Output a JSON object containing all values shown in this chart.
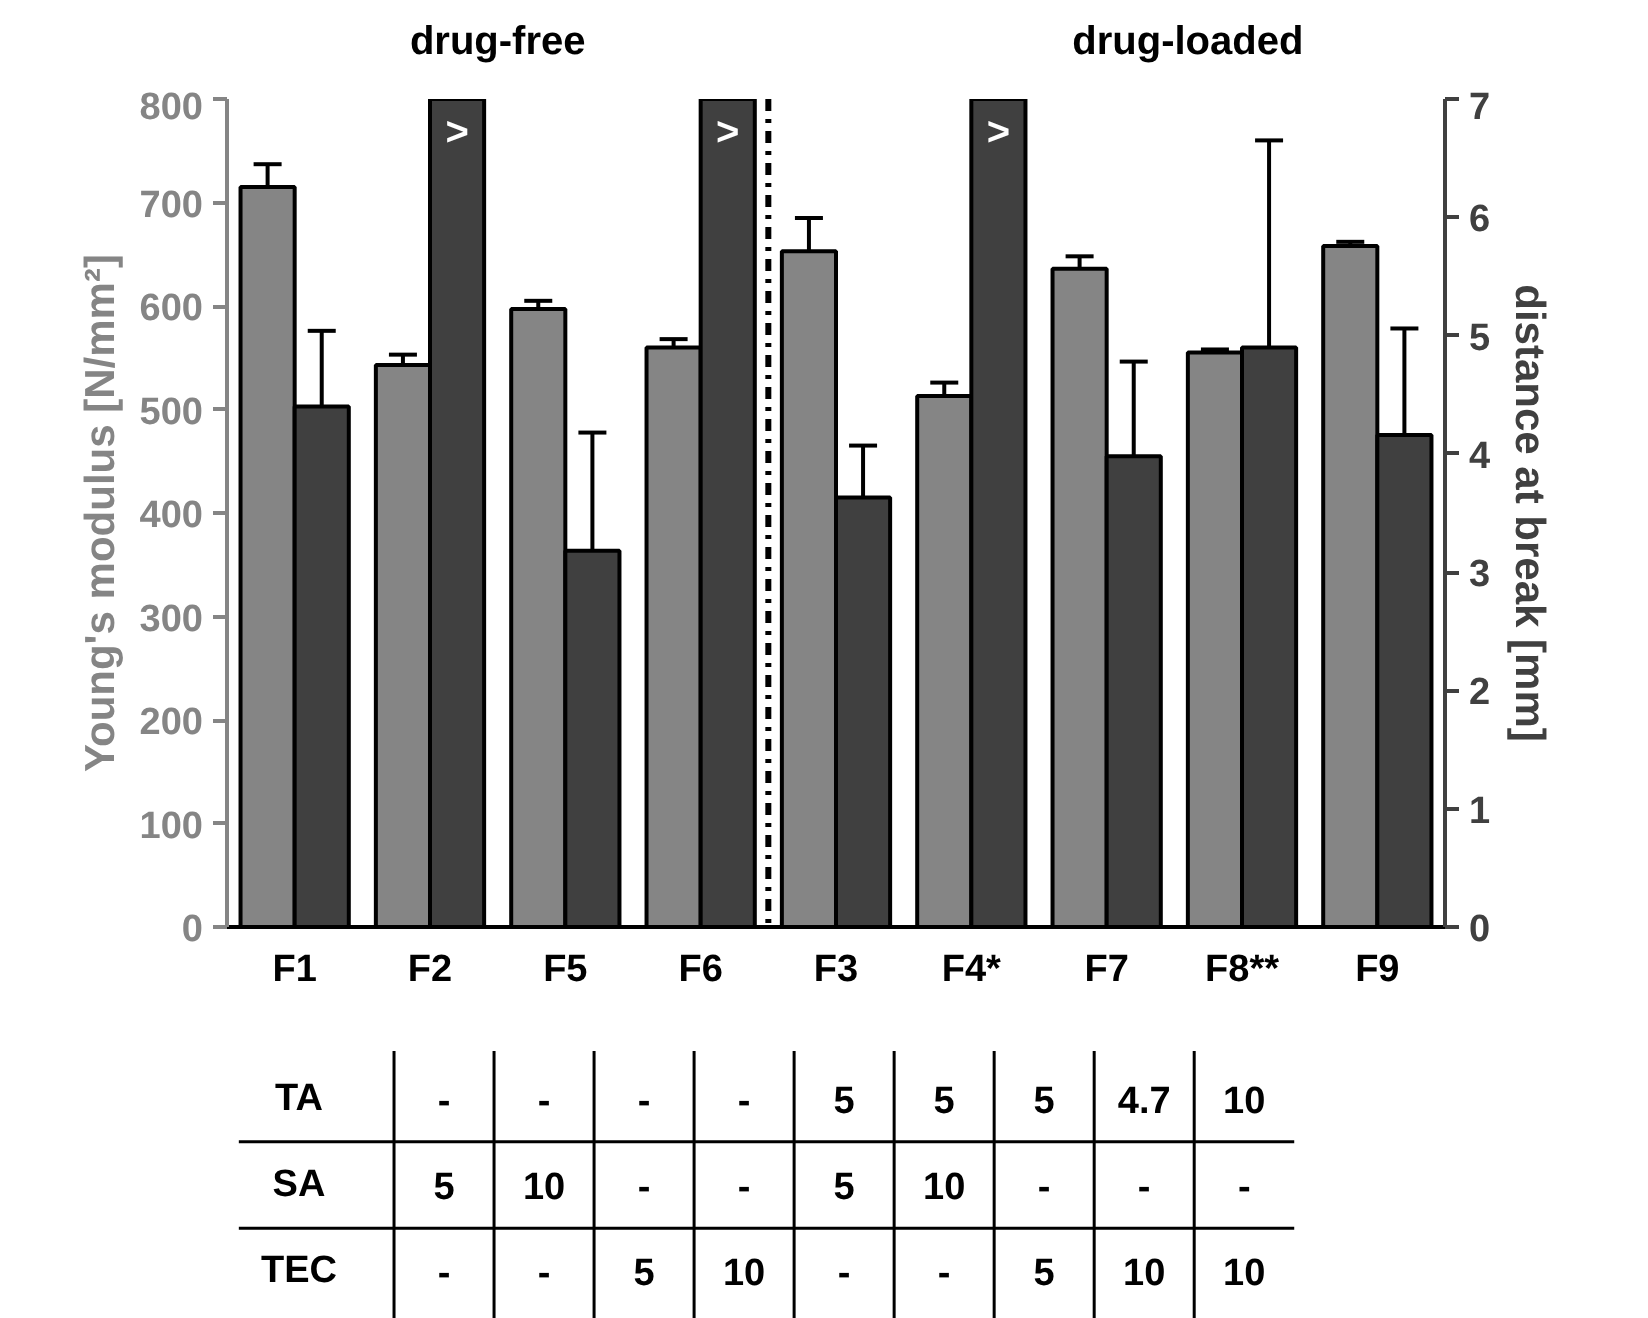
{
  "chart_data": {
    "type": "bar",
    "categories": [
      "F1",
      "F2",
      "F5",
      "F6",
      "F3",
      "F4*",
      "F7",
      "F8**",
      "F9"
    ],
    "series": [
      {
        "color": "#858585",
        "values": [
          715,
          543,
          597,
          560,
          653,
          513,
          636,
          555,
          658
        ],
        "errors": [
          22,
          10,
          8,
          8,
          32,
          13,
          12,
          3,
          4
        ]
      },
      {
        "axis": "y2",
        "color": "#404040",
        "values": [
          4.4,
          7,
          3.18,
          7,
          3.63,
          7,
          3.98,
          4.9,
          4.16
        ],
        "errors": [
          0.64,
          null,
          1.0,
          null,
          0.44,
          null,
          0.8,
          1.75,
          0.9
        ],
        "value_labels": [
          null,
          ">",
          null,
          ">",
          null,
          ">",
          null,
          null,
          null
        ]
      }
    ],
    "ylabel": "Young's modulus [N/mm²]",
    "y2label": "distance at break [mm]",
    "ylim": [
      0,
      800
    ],
    "yticks": [
      0,
      100,
      200,
      300,
      400,
      500,
      600,
      700,
      800
    ],
    "y2lim": [
      0,
      7
    ],
    "y2ticks": [
      0,
      1,
      2,
      3,
      4,
      5,
      6,
      7
    ],
    "annotations": [
      "drug-free",
      "drug-loaded",
      "TA",
      "-",
      "-",
      "-",
      "-",
      "5",
      "5",
      "5",
      "4.7",
      "10",
      "SA",
      "5",
      "10",
      "-",
      "-",
      "5",
      "10",
      "-",
      "-",
      "-",
      "TEC",
      "-",
      "-",
      "5",
      "10",
      "-",
      "-",
      "5",
      "10",
      "10"
    ],
    "grid": false
  }
}
